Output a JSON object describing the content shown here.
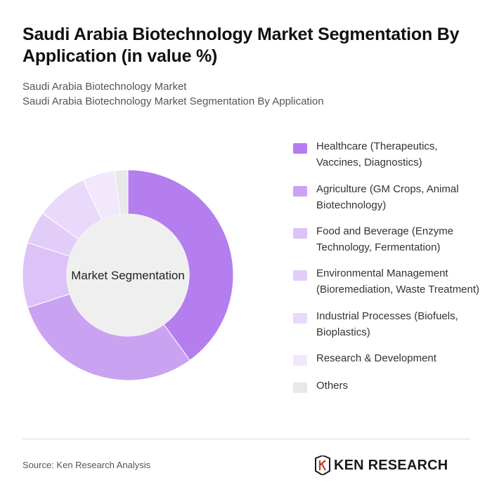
{
  "header": {
    "title": "Saudi Arabia Biotechnology Market Segmentation By Application (in value %)",
    "subtitle_line1": "Saudi Arabia Biotechnology Market",
    "subtitle_line2": "Saudi Arabia Biotechnology Market Segmentation By Application"
  },
  "chart_data": {
    "type": "pie",
    "center_label": "Market Segmentation",
    "categories": [
      "Healthcare (Therapeutics, Vaccines, Diagnostics)",
      "Agriculture (GM Crops, Animal Biotechnology)",
      "Food and Beverage (Enzyme Technology, Fermentation)",
      "Environmental Management (Bioremediation, Waste Treatment)",
      "Industrial Processes (Biofuels, Bioplastics)",
      "Research & Development",
      "Others"
    ],
    "values": [
      40,
      30,
      10,
      5,
      8,
      5,
      2
    ],
    "colors": [
      "#b47eee",
      "#c9a3f2",
      "#dcc2f7",
      "#e2ccf8",
      "#e9d9fa",
      "#f1e8fc",
      "#e8e8e8"
    ],
    "legend_position": "right"
  },
  "footer": {
    "source": "Source: Ken Research Analysis",
    "logo_text": "KEN RESEARCH"
  }
}
